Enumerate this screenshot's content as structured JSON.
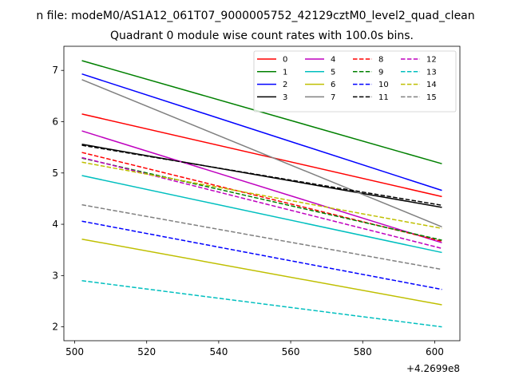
{
  "figure": {
    "suptitle": "n file: modeM0/AS1A12_061T07_9000005752_42129cztM0_level2_quad_clean"
  },
  "chart_data": {
    "type": "line",
    "title": "Quadrant 0 module wise count rates with 100.0s bins.",
    "xlabel": "",
    "ylabel": "",
    "x_offset_label": "+4.2699e8",
    "xlim": [
      497,
      607
    ],
    "ylim": [
      1.73,
      7.47
    ],
    "x_ticks": [
      500,
      520,
      540,
      560,
      580,
      600
    ],
    "y_ticks": [
      2,
      3,
      4,
      5,
      6,
      7
    ],
    "grid": false,
    "legend": {
      "placement": "top-right",
      "columns": 4
    },
    "x": [
      502,
      602
    ],
    "series": [
      {
        "name": "0",
        "color": "#ff0000",
        "style": "solid",
        "values": [
          6.15,
          4.54
        ]
      },
      {
        "name": "1",
        "color": "#008000",
        "style": "solid",
        "values": [
          7.19,
          5.18
        ]
      },
      {
        "name": "2",
        "color": "#0000ff",
        "style": "solid",
        "values": [
          6.93,
          4.66
        ]
      },
      {
        "name": "3",
        "color": "#000000",
        "style": "solid",
        "values": [
          5.56,
          4.33
        ]
      },
      {
        "name": "4",
        "color": "#bf00bf",
        "style": "solid",
        "values": [
          5.82,
          3.64
        ]
      },
      {
        "name": "5",
        "color": "#00bfbf",
        "style": "solid",
        "values": [
          4.95,
          3.45
        ]
      },
      {
        "name": "6",
        "color": "#bfbf00",
        "style": "solid",
        "values": [
          3.71,
          2.43
        ]
      },
      {
        "name": "7",
        "color": "#808080",
        "style": "solid",
        "values": [
          6.82,
          3.95
        ]
      },
      {
        "name": "8",
        "color": "#ff0000",
        "style": "dashed",
        "values": [
          5.4,
          3.67
        ]
      },
      {
        "name": "9",
        "color": "#008000",
        "style": "dashed",
        "values": [
          5.29,
          3.69
        ]
      },
      {
        "name": "10",
        "color": "#0000ff",
        "style": "dashed",
        "values": [
          4.06,
          2.73
        ]
      },
      {
        "name": "11",
        "color": "#000000",
        "style": "dashed",
        "values": [
          5.54,
          4.37
        ]
      },
      {
        "name": "12",
        "color": "#bf00bf",
        "style": "dashed",
        "values": [
          5.3,
          3.53
        ]
      },
      {
        "name": "13",
        "color": "#00bfbf",
        "style": "dashed",
        "values": [
          2.9,
          2.0
        ]
      },
      {
        "name": "14",
        "color": "#bfbf00",
        "style": "dashed",
        "values": [
          5.21,
          3.92
        ]
      },
      {
        "name": "15",
        "color": "#808080",
        "style": "dashed",
        "values": [
          4.38,
          3.12
        ]
      }
    ]
  }
}
